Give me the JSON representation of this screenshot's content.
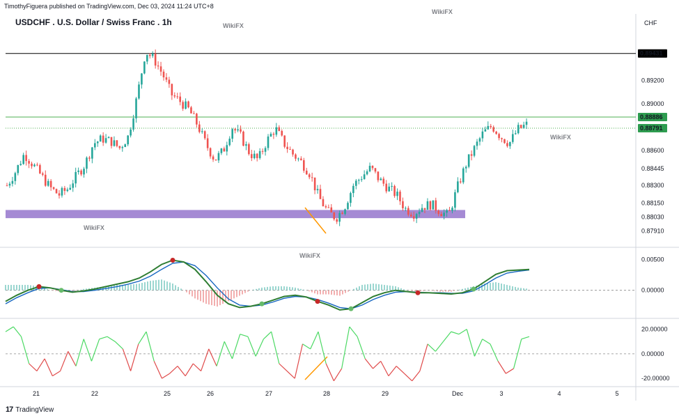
{
  "header": {
    "published": "TimothyFiguera published on TradingView.com, Dec 03, 2024 11:24 UTC+8",
    "title": "USDCHF . U.S. Dollar / Swiss Franc . 1h",
    "currency": "CHF"
  },
  "footer": {
    "brand": "TradingView"
  },
  "watermark": "WikiFX",
  "colors": {
    "up": "#26a69a",
    "down": "#ef5350",
    "macd": "#2e7d32",
    "signal": "#1565c0",
    "macd_dark": "#b71c1c",
    "zone": "#9575cd",
    "green_line": "#4caf50",
    "black_line": "#000000",
    "rsi_up": "#4cd964",
    "rsi_down": "#e04a4a",
    "orange": "#ff9800"
  },
  "chart_data": [
    {
      "type": "candlestick",
      "name": "price",
      "ylim": [
        0.878,
        0.8965
      ],
      "yticks": [
        "0.89431",
        "0.89200",
        "0.89000",
        "0.88886",
        "0.88791",
        "0.88600",
        "0.88445",
        "0.88300",
        "0.88150",
        "0.88030",
        "0.87910"
      ],
      "ytick_values": [
        0.892,
        0.89,
        0.886,
        0.88445,
        0.883,
        0.8815,
        0.8803,
        0.8791
      ],
      "ytick_labels": [
        "0.89200",
        "0.89000",
        "0.88600",
        "0.88445",
        "0.88300",
        "0.88150",
        "0.88030",
        "0.87910"
      ],
      "levels": [
        {
          "label": "0.89431",
          "value": 0.89431,
          "style": "black"
        },
        {
          "label": "0.88886",
          "value": 0.88886,
          "style": "green"
        },
        {
          "label": "0.88791",
          "value": 0.88791,
          "style": "green-dotted"
        }
      ],
      "zone": {
        "from": 0.8802,
        "to": 0.8809
      },
      "xticks": [
        "21",
        "22",
        "25",
        "26",
        "27",
        "28",
        "29",
        "Dec",
        "3",
        "4",
        "5"
      ],
      "close_path": [
        0.883,
        0.8842,
        0.8857,
        0.8848,
        0.8838,
        0.8828,
        0.8822,
        0.8827,
        0.8838,
        0.8848,
        0.8866,
        0.887,
        0.8868,
        0.8862,
        0.8872,
        0.8905,
        0.8945,
        0.8938,
        0.8925,
        0.8908,
        0.8902,
        0.8895,
        0.8882,
        0.8865,
        0.8852,
        0.886,
        0.888,
        0.8872,
        0.8858,
        0.8852,
        0.8868,
        0.8879,
        0.8866,
        0.8857,
        0.885,
        0.884,
        0.882,
        0.8808,
        0.8802,
        0.8812,
        0.883,
        0.8838,
        0.8845,
        0.8835,
        0.8828,
        0.8822,
        0.881,
        0.8806,
        0.8812,
        0.8814,
        0.8808,
        0.8804,
        0.8828,
        0.8848,
        0.8862,
        0.8875,
        0.8881,
        0.8872,
        0.8866,
        0.8878,
        0.8882
      ]
    },
    {
      "type": "line",
      "name": "macd",
      "yticks": [
        "0.00500",
        "0.00000"
      ],
      "ytick_values": [
        0.005,
        0.0
      ],
      "ylim": [
        -0.004,
        0.0062
      ],
      "series": [
        {
          "values": [
            -0.0018,
            -0.0008,
            0.0,
            0.0006,
            0.0004,
            0.0,
            -0.0003,
            -0.0001,
            0.0002,
            0.0006,
            0.001,
            0.0014,
            0.002,
            0.003,
            0.0042,
            0.0049,
            0.0046,
            0.0034,
            0.0014,
            -0.0008,
            -0.0022,
            -0.0028,
            -0.0026,
            -0.0022,
            -0.0016,
            -0.001,
            -0.0008,
            -0.0011,
            -0.0018,
            -0.0024,
            -0.0032,
            -0.003,
            -0.002,
            -0.001,
            -0.0004,
            0.0,
            -0.0002,
            -0.0004,
            -0.0004,
            -0.0005,
            -0.0006,
            -0.0004,
            0.0002,
            0.0014,
            0.0026,
            0.0032,
            0.0033,
            0.0034
          ]
        },
        {
          "values": [
            -0.0022,
            -0.0012,
            -0.0004,
            0.0003,
            0.0004,
            0.0001,
            -0.0002,
            -0.0002,
            0.0,
            0.0003,
            0.0006,
            0.001,
            0.0015,
            0.0023,
            0.0034,
            0.0044,
            0.0046,
            0.004,
            0.0024,
            0.0004,
            -0.0014,
            -0.0024,
            -0.0026,
            -0.0024,
            -0.0019,
            -0.0013,
            -0.001,
            -0.0011,
            -0.0015,
            -0.0021,
            -0.0028,
            -0.003,
            -0.0024,
            -0.0015,
            -0.0008,
            -0.0003,
            -0.0002,
            -0.0003,
            -0.0004,
            -0.0004,
            -0.0005,
            -0.0005,
            -0.0001,
            0.0009,
            0.002,
            0.0028,
            0.0031,
            0.0033
          ]
        }
      ]
    },
    {
      "type": "line",
      "name": "oscillator",
      "yticks": [
        "20.00000",
        "0.00000",
        "-20.00000"
      ],
      "ytick_values": [
        20,
        0,
        -20
      ],
      "ylim": [
        -25,
        26
      ],
      "values": [
        18,
        22,
        14,
        -8,
        -14,
        -4,
        -18,
        -14,
        2,
        -10,
        12,
        -6,
        12,
        14,
        10,
        4,
        -14,
        8,
        18,
        -6,
        -20,
        -16,
        -10,
        -18,
        -8,
        -14,
        4,
        -10,
        10,
        -4,
        16,
        14,
        -2,
        12,
        18,
        -8,
        -14,
        -20,
        8,
        4,
        18,
        -8,
        -22,
        -12,
        22,
        14,
        -4,
        -12,
        -6,
        -18,
        -10,
        -16,
        -22,
        -14,
        8,
        2,
        10,
        18,
        16,
        20,
        -2,
        12,
        8,
        -6,
        -16,
        -12,
        12,
        14
      ]
    }
  ]
}
